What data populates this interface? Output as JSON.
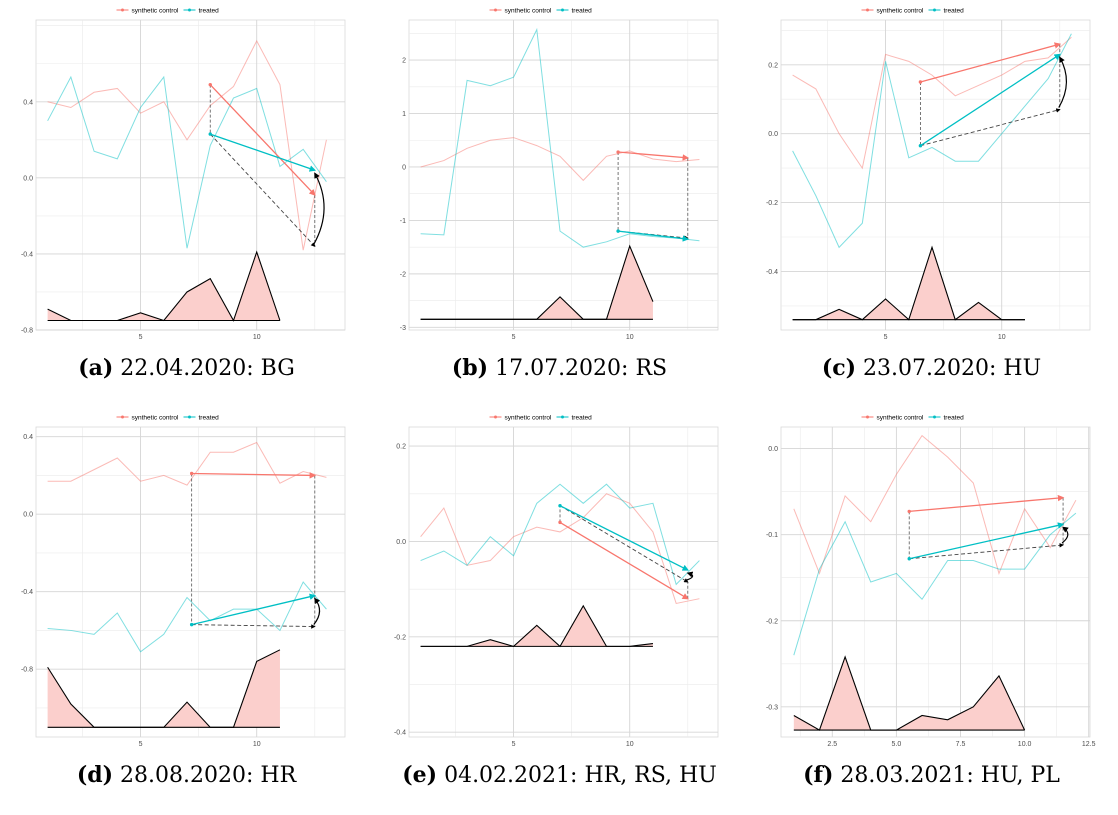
{
  "legend": {
    "synthetic": "synthetic control",
    "treated": "treated"
  },
  "colors": {
    "synthetic": "#F8766D",
    "treated": "#00BFC4",
    "area": "#F8766D",
    "grid": "#e3e3e3"
  },
  "chart_data": [
    {
      "id": "a",
      "type": "line",
      "caption_letter": "(a)",
      "caption_text": "22.04.2020: BG",
      "xlim": [
        0.5,
        13.8
      ],
      "ylim": [
        -0.8,
        0.83
      ],
      "xticks": [
        5,
        10
      ],
      "xticklabels": [
        "5",
        "10"
      ],
      "yticks": [
        -0.8,
        -0.4,
        0.0,
        0.4
      ],
      "yticklabels": [
        "-0.8",
        "-0.4",
        "0.0",
        "0.4"
      ],
      "series": [
        {
          "name": "synthetic control",
          "x": [
            1,
            2,
            3,
            4,
            5,
            6,
            7,
            8,
            9,
            10,
            11,
            12,
            13
          ],
          "y": [
            0.4,
            0.37,
            0.45,
            0.47,
            0.34,
            0.4,
            0.2,
            0.38,
            0.48,
            0.72,
            0.49,
            -0.38,
            0.2
          ]
        },
        {
          "name": "treated",
          "x": [
            1,
            2,
            3,
            4,
            5,
            6,
            7,
            8,
            9,
            10,
            11,
            12,
            13
          ],
          "y": [
            0.3,
            0.53,
            0.14,
            0.1,
            0.37,
            0.53,
            -0.37,
            0.17,
            0.42,
            0.47,
            0.06,
            0.15,
            -0.02
          ]
        }
      ],
      "area": {
        "base": -0.75,
        "x": [
          1,
          2,
          3,
          4,
          5,
          6,
          7,
          8,
          9,
          10,
          11
        ],
        "y": [
          -0.69,
          -0.75,
          -0.75,
          -0.75,
          -0.71,
          -0.75,
          -0.6,
          -0.53,
          -0.75,
          -0.39,
          -0.75
        ]
      },
      "arrows": {
        "synthetic": {
          "x0": 8,
          "y0": 0.49,
          "x1": 12.5,
          "y1": -0.09
        },
        "treated": {
          "x0": 8,
          "y0": 0.23,
          "x1": 12.5,
          "y1": 0.04
        },
        "dashed": {
          "x0": 8,
          "y0": 0.23,
          "x1": 12.5,
          "y1": -0.36
        },
        "curve_sign": 1
      }
    },
    {
      "id": "b",
      "type": "line",
      "caption_letter": "(b)",
      "caption_text": "17.07.2020: RS",
      "xlim": [
        0.5,
        13.8
      ],
      "ylim": [
        -3.05,
        2.75
      ],
      "xticks": [
        5,
        10
      ],
      "xticklabels": [
        "5",
        "10"
      ],
      "yticks": [
        -3,
        -2,
        -1,
        0,
        1,
        2
      ],
      "yticklabels": [
        "-3",
        "-2",
        "-1",
        "0",
        "1",
        "2"
      ],
      "series": [
        {
          "name": "synthetic control",
          "x": [
            1,
            2,
            3,
            4,
            5,
            6,
            7,
            8,
            9,
            10,
            11,
            12,
            13
          ],
          "y": [
            0.0,
            0.12,
            0.35,
            0.5,
            0.55,
            0.4,
            0.2,
            -0.25,
            0.2,
            0.3,
            0.15,
            0.1,
            0.14
          ]
        },
        {
          "name": "treated",
          "x": [
            1,
            2,
            3,
            4,
            5,
            6,
            7,
            8,
            9,
            10,
            11,
            12,
            13
          ],
          "y": [
            -1.25,
            -1.27,
            1.62,
            1.52,
            1.68,
            2.57,
            -1.2,
            -1.5,
            -1.4,
            -1.25,
            -1.3,
            -1.33,
            -1.38
          ]
        }
      ],
      "area": {
        "base": -2.85,
        "x": [
          1,
          2,
          3,
          4,
          5,
          6,
          7,
          8,
          9,
          10,
          11
        ],
        "y": [
          -2.85,
          -2.85,
          -2.85,
          -2.85,
          -2.85,
          -2.85,
          -2.43,
          -2.85,
          -2.85,
          -1.48,
          -2.52
        ]
      },
      "arrows": {
        "synthetic": {
          "x0": 9.5,
          "y0": 0.28,
          "x1": 12.5,
          "y1": 0.17
        },
        "treated": {
          "x0": 9.5,
          "y0": -1.2,
          "x1": 12.5,
          "y1": -1.35
        },
        "dashed": {
          "x0": 9.5,
          "y0": -1.2,
          "x1": 12.5,
          "y1": -1.33
        },
        "curve_sign": 0
      }
    },
    {
      "id": "c",
      "type": "line",
      "caption_letter": "(c)",
      "caption_text": "23.07.2020: HU",
      "xlim": [
        0.5,
        13.8
      ],
      "ylim": [
        -0.57,
        0.33
      ],
      "xticks": [
        5,
        10
      ],
      "xticklabels": [
        "5",
        "10"
      ],
      "yticks": [
        -0.4,
        -0.2,
        0.0,
        0.2
      ],
      "yticklabels": [
        "-0.4",
        "-0.2",
        "0.0",
        "0.2"
      ],
      "series": [
        {
          "name": "synthetic control",
          "x": [
            1,
            2,
            3,
            4,
            5,
            6,
            7,
            8,
            9,
            10,
            11,
            12,
            13
          ],
          "y": [
            0.17,
            0.13,
            0.0,
            -0.1,
            0.23,
            0.21,
            0.17,
            0.11,
            0.14,
            0.17,
            0.21,
            0.22,
            0.28
          ]
        },
        {
          "name": "treated",
          "x": [
            1,
            2,
            3,
            4,
            5,
            6,
            7,
            8,
            9,
            10,
            11,
            12,
            13
          ],
          "y": [
            -0.05,
            -0.18,
            -0.33,
            -0.26,
            0.21,
            -0.07,
            -0.04,
            -0.08,
            -0.08,
            0.0,
            0.08,
            0.16,
            0.29
          ]
        }
      ],
      "area": {
        "base": -0.54,
        "x": [
          1,
          2,
          3,
          4,
          5,
          6,
          7,
          8,
          9,
          10,
          11
        ],
        "y": [
          -0.54,
          -0.54,
          -0.51,
          -0.54,
          -0.48,
          -0.54,
          -0.33,
          -0.54,
          -0.49,
          -0.54,
          -0.54
        ]
      },
      "arrows": {
        "synthetic": {
          "x0": 6.5,
          "y0": 0.15,
          "x1": 12.5,
          "y1": 0.26
        },
        "treated": {
          "x0": 6.5,
          "y0": -0.035,
          "x1": 12.5,
          "y1": 0.23
        },
        "dashed": {
          "x0": 6.5,
          "y0": -0.035,
          "x1": 12.5,
          "y1": 0.07
        },
        "curve_sign": 1
      }
    },
    {
      "id": "d",
      "type": "line",
      "caption_letter": "(d)",
      "caption_text": "28.08.2020: HR",
      "xlim": [
        0.5,
        13.8
      ],
      "ylim": [
        -1.15,
        0.45
      ],
      "xticks": [
        5,
        10
      ],
      "xticklabels": [
        "5",
        "10"
      ],
      "yticks": [
        -0.8,
        -0.4,
        0.0,
        0.4
      ],
      "yticklabels": [
        "-0.8",
        "-0.4",
        "0.0",
        "0.4"
      ],
      "series": [
        {
          "name": "synthetic control",
          "x": [
            1,
            2,
            3,
            4,
            5,
            6,
            7,
            8,
            9,
            10,
            11,
            12,
            13
          ],
          "y": [
            0.17,
            0.17,
            0.23,
            0.29,
            0.17,
            0.2,
            0.15,
            0.32,
            0.32,
            0.37,
            0.16,
            0.22,
            0.19
          ]
        },
        {
          "name": "treated",
          "x": [
            1,
            2,
            3,
            4,
            5,
            6,
            7,
            8,
            9,
            10,
            11,
            12,
            13
          ],
          "y": [
            -0.59,
            -0.6,
            -0.62,
            -0.51,
            -0.71,
            -0.62,
            -0.43,
            -0.55,
            -0.49,
            -0.49,
            -0.6,
            -0.35,
            -0.49
          ]
        }
      ],
      "area": {
        "base": -1.1,
        "x": [
          1,
          2,
          3,
          4,
          5,
          6,
          7,
          8,
          9,
          10,
          11
        ],
        "y": [
          -0.79,
          -0.98,
          -1.1,
          -1.1,
          -1.1,
          -1.1,
          -0.97,
          -1.1,
          -1.1,
          -0.76,
          -0.7
        ]
      },
      "arrows": {
        "synthetic": {
          "x0": 7.2,
          "y0": 0.21,
          "x1": 12.5,
          "y1": 0.2
        },
        "treated": {
          "x0": 7.2,
          "y0": -0.57,
          "x1": 12.5,
          "y1": -0.42
        },
        "dashed": {
          "x0": 7.2,
          "y0": -0.57,
          "x1": 12.5,
          "y1": -0.58
        },
        "curve_sign": 1
      }
    },
    {
      "id": "e",
      "type": "line",
      "caption_letter": "(e)",
      "caption_text": "04.02.2021: HR, RS, HU",
      "xlim": [
        0.5,
        13.8
      ],
      "ylim": [
        -0.41,
        0.24
      ],
      "xticks": [
        5,
        10
      ],
      "xticklabels": [
        "5",
        "10"
      ],
      "yticks": [
        -0.4,
        -0.2,
        0.0,
        0.2
      ],
      "yticklabels": [
        "-0.4",
        "-0.2",
        "0.0",
        "0.2"
      ],
      "series": [
        {
          "name": "synthetic control",
          "x": [
            1,
            2,
            3,
            4,
            5,
            6,
            7,
            8,
            9,
            10,
            11,
            12,
            13
          ],
          "y": [
            0.01,
            0.07,
            -0.05,
            -0.04,
            0.01,
            0.03,
            0.02,
            0.05,
            0.1,
            0.08,
            0.02,
            -0.13,
            -0.12
          ]
        },
        {
          "name": "treated",
          "x": [
            1,
            2,
            3,
            4,
            5,
            6,
            7,
            8,
            9,
            10,
            11,
            12,
            13
          ],
          "y": [
            -0.04,
            -0.02,
            -0.05,
            0.01,
            -0.03,
            0.08,
            0.12,
            0.08,
            0.12,
            0.07,
            0.08,
            -0.09,
            -0.04
          ]
        }
      ],
      "area": {
        "base": -0.22,
        "x": [
          1,
          2,
          3,
          4,
          5,
          6,
          7,
          8,
          9,
          10,
          11
        ],
        "y": [
          -0.22,
          -0.22,
          -0.22,
          -0.206,
          -0.22,
          -0.176,
          -0.22,
          -0.135,
          -0.22,
          -0.22,
          -0.214
        ]
      },
      "arrows": {
        "synthetic": {
          "x0": 7,
          "y0": 0.04,
          "x1": 12.5,
          "y1": -0.12
        },
        "treated": {
          "x0": 7,
          "y0": 0.075,
          "x1": 12.5,
          "y1": -0.06
        },
        "dashed": {
          "x0": 7,
          "y0": 0.075,
          "x1": 12.5,
          "y1": -0.085
        },
        "curve_sign": 1
      }
    },
    {
      "id": "f",
      "type": "line",
      "caption_letter": "(f)",
      "caption_text": "28.03.2021: HU, PL",
      "xlim": [
        0.5,
        12.55
      ],
      "ylim": [
        -0.335,
        0.025
      ],
      "xticks": [
        2.5,
        5.0,
        7.5,
        10.0,
        12.5
      ],
      "xticklabels": [
        "2.5",
        "5.0",
        "7.5",
        "10.0",
        "12.5"
      ],
      "yticks": [
        -0.3,
        -0.2,
        -0.1,
        0.0
      ],
      "yticklabels": [
        "-0.3",
        "-0.2",
        "-0.1",
        "0.0"
      ],
      "series": [
        {
          "name": "synthetic control",
          "x": [
            1,
            2,
            3,
            4,
            5,
            6,
            7,
            8,
            9,
            10,
            11,
            12
          ],
          "y": [
            -0.07,
            -0.145,
            -0.055,
            -0.085,
            -0.03,
            0.015,
            -0.01,
            -0.04,
            -0.145,
            -0.07,
            -0.115,
            -0.06
          ]
        },
        {
          "name": "treated",
          "x": [
            1,
            2,
            3,
            4,
            5,
            6,
            7,
            8,
            9,
            10,
            11,
            12
          ],
          "y": [
            -0.24,
            -0.14,
            -0.085,
            -0.155,
            -0.145,
            -0.175,
            -0.13,
            -0.13,
            -0.14,
            -0.14,
            -0.1,
            -0.075
          ]
        }
      ],
      "area": {
        "base": -0.327,
        "x": [
          1,
          2,
          3,
          4,
          5,
          6,
          7,
          8,
          9,
          10
        ],
        "y": [
          -0.31,
          -0.327,
          -0.242,
          -0.327,
          -0.327,
          -0.31,
          -0.315,
          -0.3,
          -0.264,
          -0.327
        ]
      },
      "arrows": {
        "synthetic": {
          "x0": 5.5,
          "y0": -0.073,
          "x1": 11.5,
          "y1": -0.057
        },
        "treated": {
          "x0": 5.5,
          "y0": -0.128,
          "x1": 11.5,
          "y1": -0.088
        },
        "dashed": {
          "x0": 5.5,
          "y0": -0.128,
          "x1": 11.5,
          "y1": -0.112
        },
        "curve_sign": 1
      }
    }
  ]
}
